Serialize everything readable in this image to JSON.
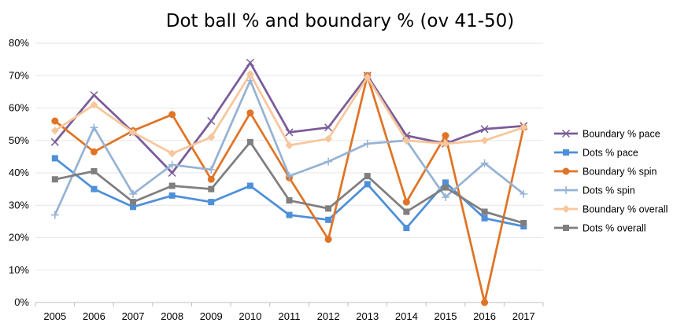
{
  "chart_data": {
    "type": "line",
    "title": "Dot ball % and boundary % (ov 41-50)",
    "xlabel": "",
    "ylabel": "",
    "ylim": [
      0,
      80
    ],
    "yticks": [
      "0%",
      "10%",
      "20%",
      "30%",
      "40%",
      "50%",
      "60%",
      "70%",
      "80%"
    ],
    "ytick_values": [
      0,
      10,
      20,
      30,
      40,
      50,
      60,
      70,
      80
    ],
    "categories": [
      "2005",
      "2006",
      "2007",
      "2008",
      "2009",
      "2010",
      "2011",
      "2012",
      "2013",
      "2014",
      "2015",
      "2016",
      "2017"
    ],
    "grid": "horizontal",
    "legend_position": "right",
    "series": [
      {
        "name": "Boundary % pace",
        "color": "#7a5c99",
        "marker": "x-icon",
        "values": [
          49.5,
          64,
          52.5,
          40,
          56,
          74,
          52.5,
          54,
          70,
          51.5,
          49,
          53.5,
          54.5
        ]
      },
      {
        "name": "Dots % pace",
        "color": "#4e8fd9",
        "marker": "square-icon",
        "values": [
          44.5,
          35,
          29.5,
          33,
          31,
          36,
          27,
          25.5,
          36.5,
          23,
          37,
          26,
          23.5
        ]
      },
      {
        "name": "Boundary % spin",
        "color": "#e07426",
        "marker": "circle-icon",
        "values": [
          56,
          46.5,
          53,
          58,
          38,
          58.5,
          38.5,
          19.5,
          70,
          31,
          51.5,
          0,
          54
        ]
      },
      {
        "name": "Dots % spin",
        "color": "#97b3d4",
        "marker": "plus-icon",
        "values": [
          27,
          54,
          33.5,
          42.5,
          41,
          68.5,
          39,
          43.5,
          49,
          50,
          32.5,
          43,
          33.5
        ]
      },
      {
        "name": "Boundary % overall",
        "color": "#f8c69c",
        "marker": "diamond-icon",
        "values": [
          53,
          61,
          52.5,
          46,
          51,
          70.5,
          48.5,
          50.5,
          69.5,
          50,
          49,
          50,
          54
        ]
      },
      {
        "name": "Dots % overall",
        "color": "#7f7f7f",
        "marker": "square-icon",
        "values": [
          38,
          40.5,
          31,
          36,
          35,
          49.5,
          31.5,
          29,
          39,
          28,
          35.5,
          28,
          24.5
        ]
      }
    ]
  }
}
